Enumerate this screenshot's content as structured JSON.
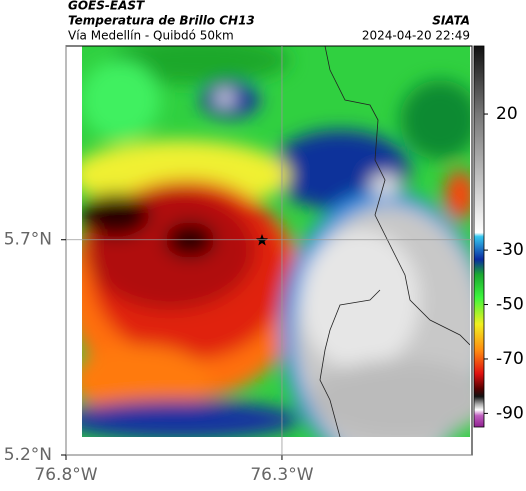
{
  "chart_data": {
    "type": "map",
    "title": "GOES-EAST",
    "subtitle": "Temperatura de Brillo CH13",
    "route": "Vía Medellín - Quibdó 50km",
    "source": "SIATA",
    "timestamp": "2024-04-20 22:49",
    "xlim": [
      -76.8,
      -75.86
    ],
    "ylim": [
      5.2,
      6.15
    ],
    "xticks": [
      {
        "value": -76.8,
        "label": "76.8°W"
      },
      {
        "value": -76.3,
        "label": "76.3°W"
      }
    ],
    "yticks": [
      {
        "value": 5.7,
        "label": "5.7°N"
      },
      {
        "value": 5.2,
        "label": "5.2°N"
      }
    ],
    "clim": [
      -95,
      45
    ],
    "cticks": [
      20,
      -30,
      -50,
      -70,
      -90
    ]
  }
}
